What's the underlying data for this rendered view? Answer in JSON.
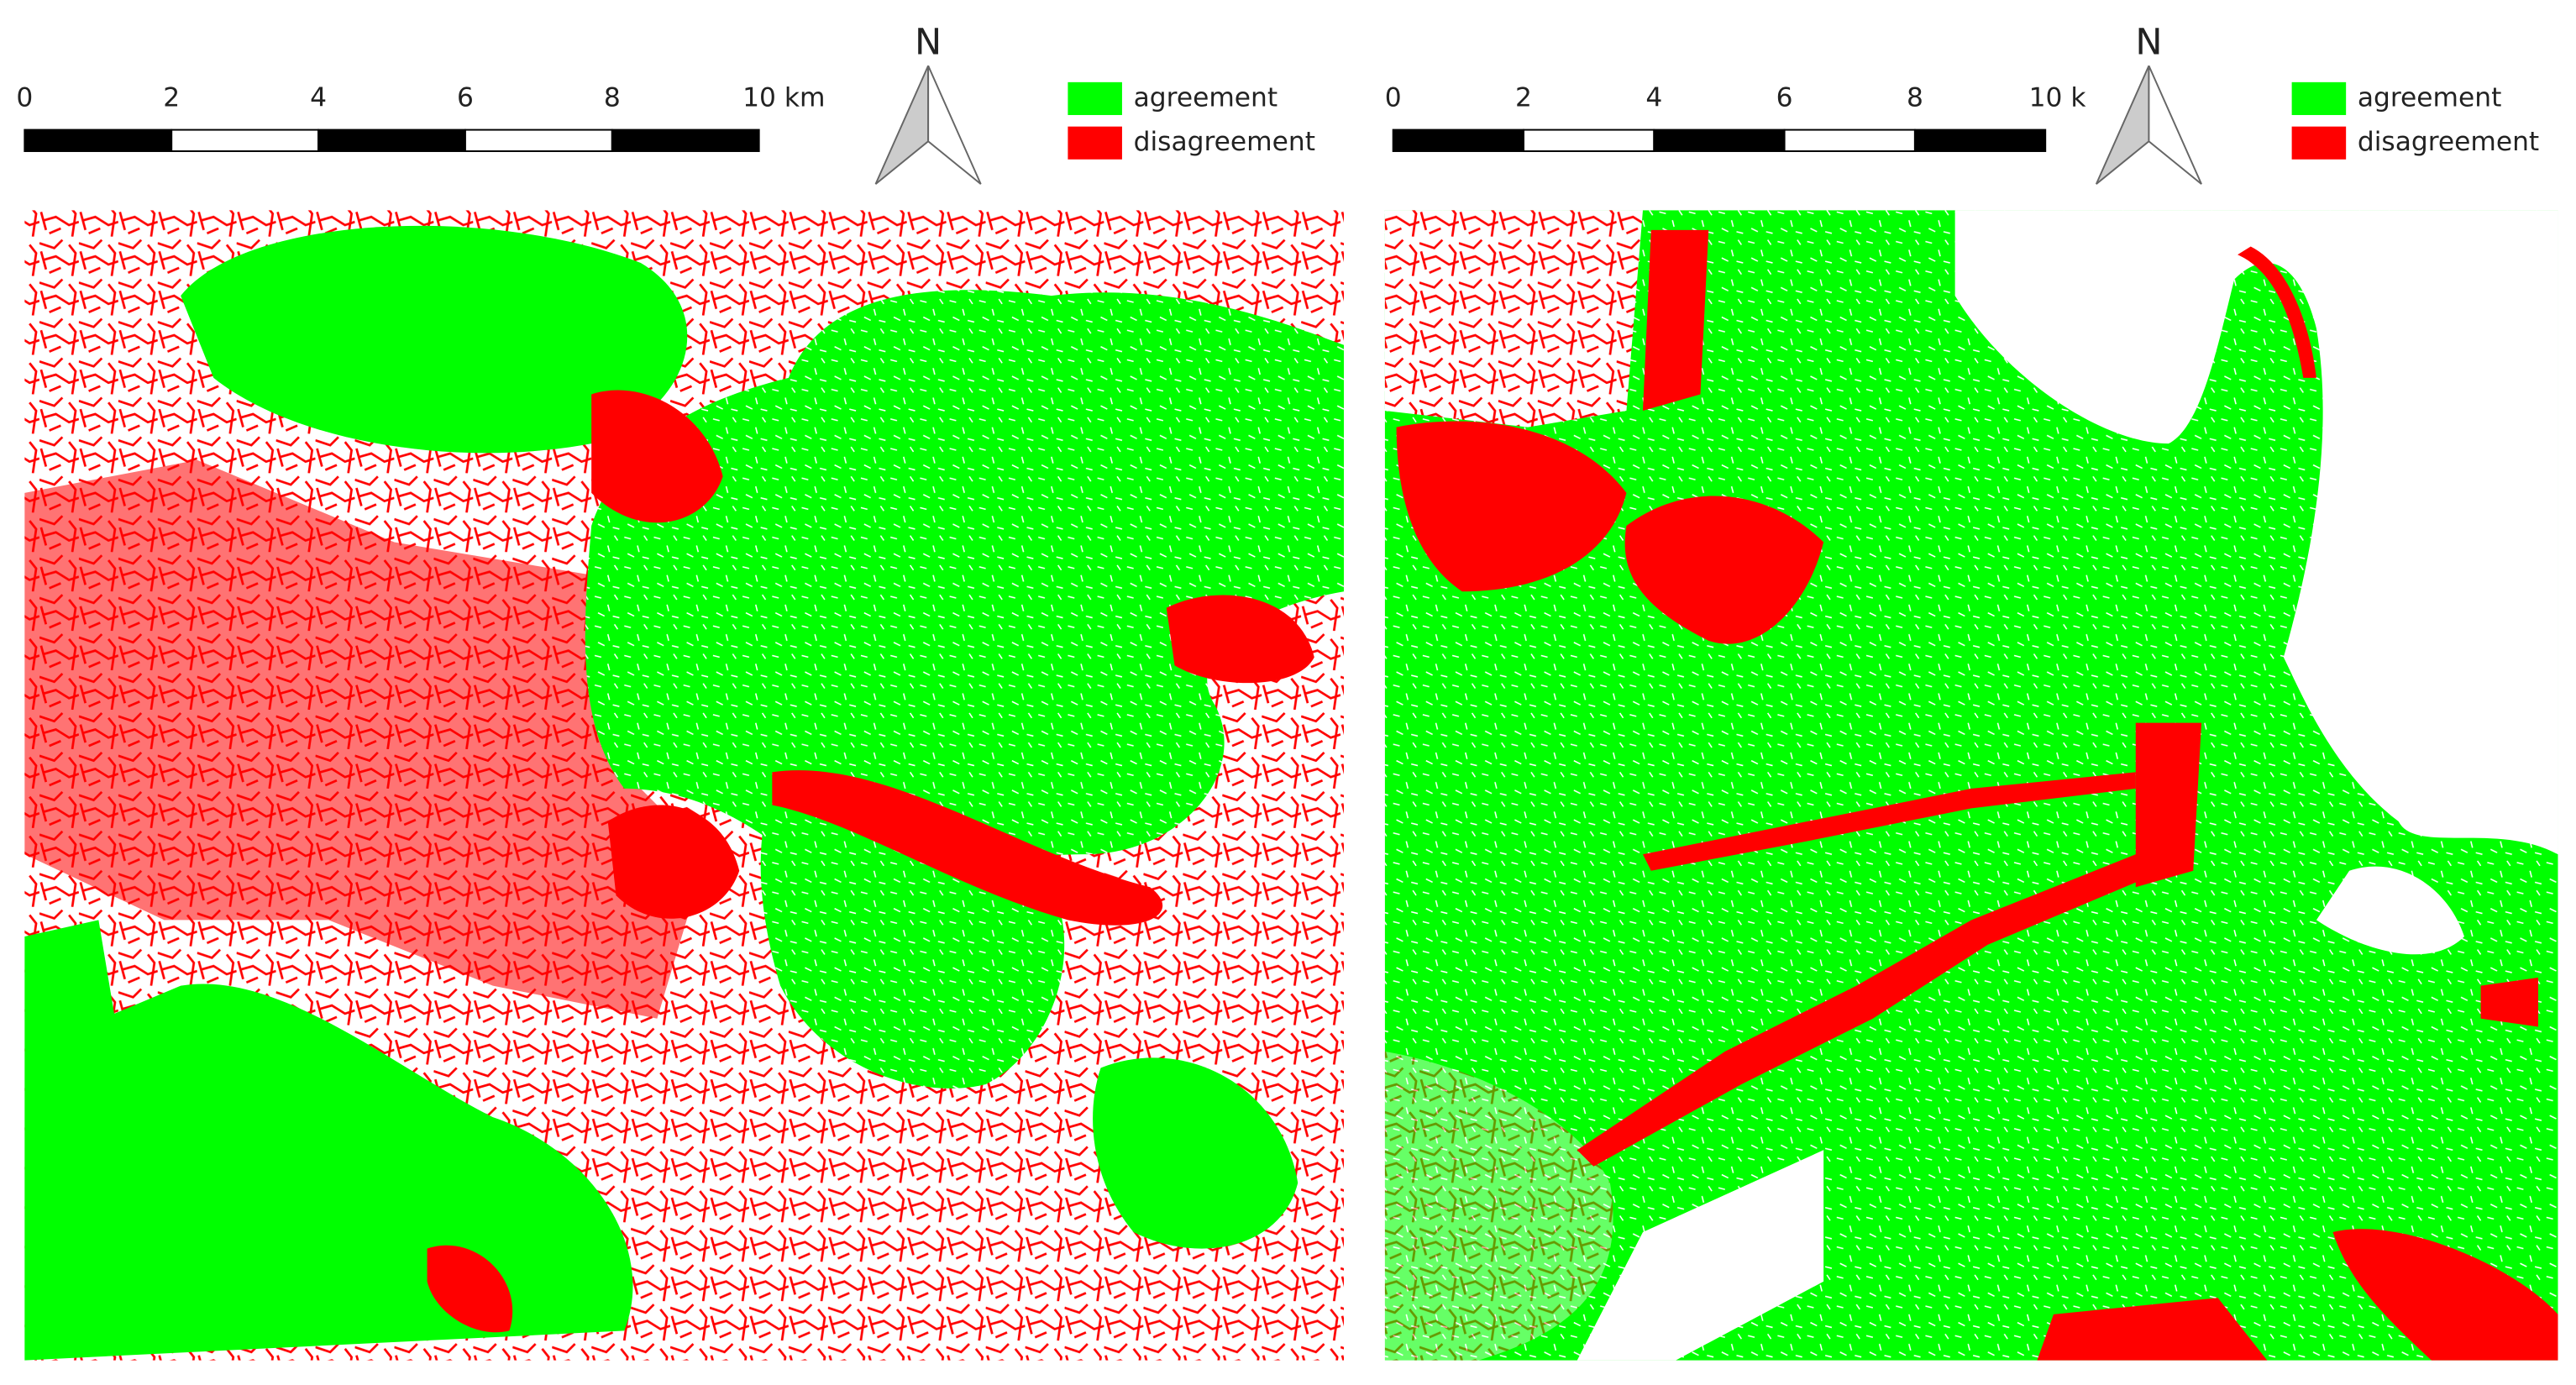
{
  "panels": [
    {
      "scale_labels": [
        "0",
        "2",
        "4",
        "6",
        "8",
        "10 km"
      ],
      "north": "N",
      "legend": [
        "agreement",
        "disagreement"
      ]
    },
    {
      "scale_labels": [
        "0",
        "2",
        "4",
        "6",
        "8",
        "10 k"
      ],
      "north": "N",
      "legend": [
        "agreement",
        "disagreement"
      ]
    }
  ]
}
